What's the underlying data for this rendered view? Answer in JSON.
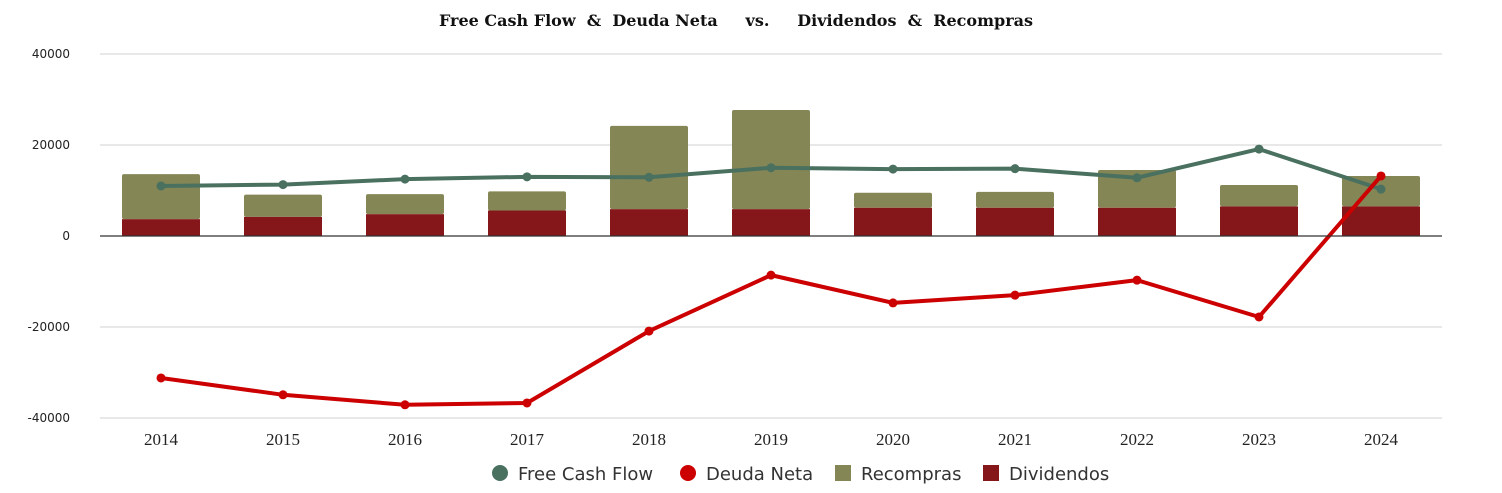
{
  "chart_data": {
    "type": "bar",
    "title": "Free Cash Flow  &  Deuda Neta     vs.     Dividendos  &  Recompras",
    "categories": [
      "2014",
      "2015",
      "2016",
      "2017",
      "2018",
      "2019",
      "2020",
      "2021",
      "2022",
      "2023",
      "2024"
    ],
    "ylim": [
      -40000,
      40000
    ],
    "yticks": [
      40000,
      20000,
      0,
      -20000,
      -40000
    ],
    "ytick_labels": [
      "40000",
      "20000",
      "0",
      "-20000",
      "-40000"
    ],
    "grid": true,
    "legend_position": "bottom",
    "series": [
      {
        "name": "Free Cash Flow",
        "kind": "line",
        "color": "#4a7060",
        "values": [
          11000,
          11300,
          12500,
          13000,
          12900,
          15000,
          14700,
          14800,
          12800,
          19100,
          10300
        ]
      },
      {
        "name": "Deuda Neta",
        "kind": "line",
        "color": "#cc0000",
        "values": [
          -31200,
          -34900,
          -37100,
          -36700,
          -20900,
          -8600,
          -14700,
          -13000,
          -9700,
          -17800,
          13200
        ]
      },
      {
        "name": "Recompras",
        "kind": "stacked-bar",
        "color": "#848655",
        "values": [
          9900,
          4900,
          4400,
          4200,
          18300,
          21800,
          3300,
          3500,
          8300,
          4700,
          6700
        ]
      },
      {
        "name": "Dividendos",
        "kind": "stacked-bar",
        "color": "#85171b",
        "values": [
          3700,
          4200,
          4800,
          5600,
          5900,
          5900,
          6200,
          6200,
          6200,
          6500,
          6500
        ]
      }
    ]
  }
}
